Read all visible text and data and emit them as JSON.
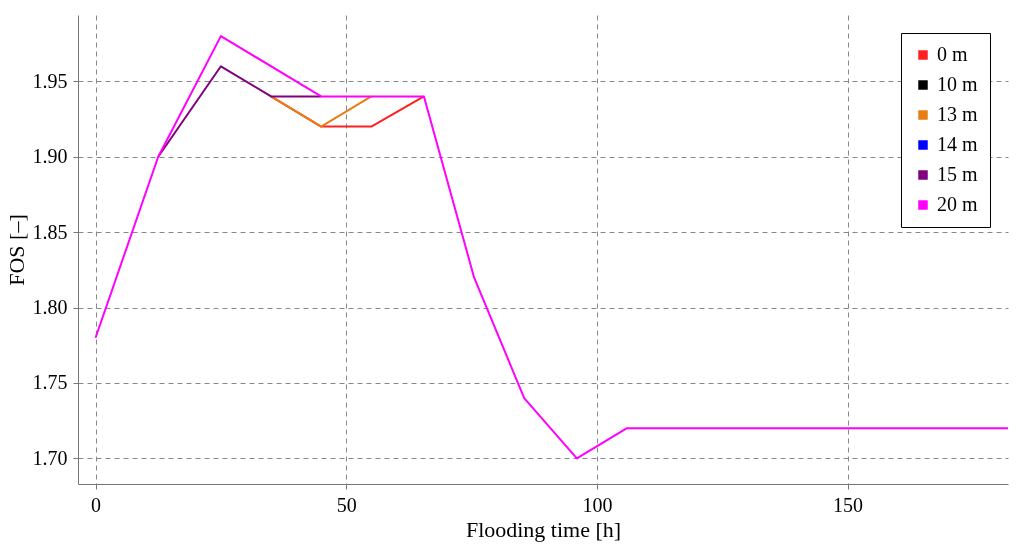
{
  "chart_data": {
    "type": "line",
    "xlabel": "Flooding time [h]",
    "ylabel": "FOS [–]",
    "x": [
      0,
      12.5,
      25,
      35,
      45,
      55,
      65.5,
      75.5,
      85.5,
      96,
      106,
      182
    ],
    "xlim": [
      -3.5,
      182
    ],
    "xticks": [
      0,
      50,
      100,
      150
    ],
    "ylim": [
      1.683,
      1.994
    ],
    "yticks": [
      {
        "value": 1.7,
        "label": "1.70"
      },
      1.75,
      {
        "value": 1.8,
        "label": "1.80"
      },
      1.85,
      {
        "value": 1.9,
        "label": "1.90"
      },
      1.95
    ],
    "grid": true,
    "legend": "top right",
    "line_style": "solid",
    "series": [
      {
        "name": "0 m",
        "color": "#ff2020",
        "values": [
          null,
          null,
          null,
          1.94,
          1.92,
          1.92,
          1.94,
          null,
          null,
          null,
          null,
          null
        ]
      },
      {
        "name": "10 m",
        "color": "#000000",
        "values": [
          null,
          null,
          null,
          null,
          null,
          null,
          null,
          null,
          null,
          null,
          null,
          null
        ]
      },
      {
        "name": "13 m",
        "color": "#e87d14",
        "values": [
          null,
          null,
          null,
          1.94,
          1.92,
          1.94,
          null,
          null,
          null,
          null,
          null,
          null
        ]
      },
      {
        "name": "14 m",
        "color": "#0000ff",
        "values": [
          null,
          null,
          null,
          null,
          null,
          null,
          null,
          null,
          null,
          null,
          null,
          null
        ]
      },
      {
        "name": "15 m",
        "color": "#800080",
        "values": [
          null,
          1.9,
          1.96,
          1.94,
          1.94,
          null,
          null,
          null,
          null,
          null,
          null,
          null
        ]
      },
      {
        "name": "20 m",
        "color": "#ff00ff",
        "values": [
          1.78,
          1.9,
          1.98,
          null,
          1.94,
          1.94,
          1.94,
          1.82,
          1.74,
          1.7,
          1.72,
          1.72
        ]
      }
    ]
  }
}
